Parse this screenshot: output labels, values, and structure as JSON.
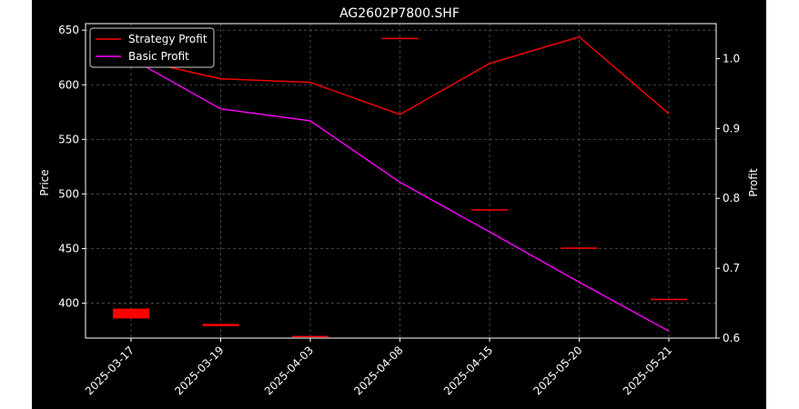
{
  "chart_data": {
    "type": "line",
    "title": "AG2602P7800.SHF",
    "xlabel": "",
    "ylabel": "Price",
    "ylabel_right": "Profit",
    "categories": [
      "2025-03-17",
      "2025-03-19",
      "2025-04-03",
      "2025-04-08",
      "2025-04-15",
      "2025-05-20",
      "2025-05-21"
    ],
    "ylim": [
      368,
      656
    ],
    "ylim_right": [
      0.6,
      1.05
    ],
    "yticks": [
      400,
      450,
      500,
      550,
      600,
      650
    ],
    "yticks_right": [
      0.6,
      0.7,
      0.8,
      0.9,
      1.0
    ],
    "ytick_labels": [
      "400",
      "450",
      "500",
      "550",
      "600",
      "650"
    ],
    "ytick_labels_right": [
      "0.6",
      "0.7",
      "0.8",
      "0.9",
      "1.0"
    ],
    "series": [
      {
        "name": "Strategy Profit",
        "axis": "right",
        "color": "#ff0000",
        "values": [
          1.0,
          0.971,
          0.966,
          0.92,
          0.993,
          1.031,
          0.921
        ]
      },
      {
        "name": "Basic Profit",
        "axis": "right",
        "color": "#ff00ff",
        "values": [
          1.0,
          0.928,
          0.911,
          0.823,
          0.752,
          0.68,
          0.61
        ]
      }
    ],
    "candles": {
      "color": "#ff0000",
      "open": [
        395,
        381,
        370,
        643,
        486,
        451,
        404
      ],
      "close": [
        386,
        379,
        369,
        642,
        485,
        450,
        403
      ]
    },
    "grid": true,
    "legend": "top-left"
  }
}
